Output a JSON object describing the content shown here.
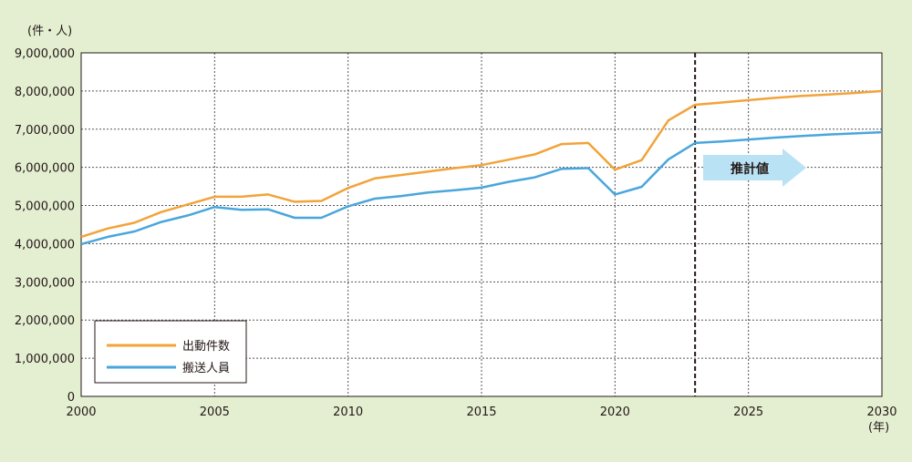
{
  "chart_data": {
    "type": "line",
    "y_unit_label": "(件・人)",
    "x_unit_label": "(年)",
    "xlim": [
      2000,
      2030
    ],
    "ylim": [
      0,
      9000000
    ],
    "x_ticks": [
      2000,
      2005,
      2010,
      2015,
      2020,
      2025,
      2030
    ],
    "x_tick_labels": [
      "2000",
      "2005",
      "2010",
      "2015",
      "2020",
      "2025",
      "2030"
    ],
    "y_ticks": [
      0,
      1000000,
      2000000,
      3000000,
      4000000,
      5000000,
      6000000,
      7000000,
      8000000,
      9000000
    ],
    "y_tick_labels": [
      "0",
      "1,000,000",
      "2,000,000",
      "3,000,000",
      "4,000,000",
      "5,000,000",
      "6,000,000",
      "7,000,000",
      "8,000,000",
      "9,000,000"
    ],
    "grid": true,
    "legend_position": "bottom-left",
    "projection_start_year": 2023,
    "projection_label": "推計値",
    "colors": {
      "series1": "#f2a33a",
      "series2": "#49a6dc",
      "arrow": "#b9e2f5"
    },
    "x": [
      2000,
      2001,
      2002,
      2003,
      2004,
      2005,
      2006,
      2007,
      2008,
      2009,
      2010,
      2011,
      2012,
      2013,
      2014,
      2015,
      2016,
      2017,
      2018,
      2019,
      2020,
      2021,
      2022,
      2023,
      2024,
      2025,
      2026,
      2027,
      2028,
      2029,
      2030
    ],
    "series": [
      {
        "name": "出動件数",
        "values": [
          4180000,
          4400000,
          4550000,
          4830000,
          5030000,
          5230000,
          5230000,
          5290000,
          5100000,
          5120000,
          5460000,
          5710000,
          5800000,
          5890000,
          5980000,
          6060000,
          6200000,
          6340000,
          6610000,
          6640000,
          5940000,
          6190000,
          7230000,
          7640000,
          7700000,
          7760000,
          7820000,
          7870000,
          7910000,
          7950000,
          8000000
        ]
      },
      {
        "name": "搬送人員",
        "values": [
          3990000,
          4180000,
          4320000,
          4570000,
          4740000,
          4960000,
          4890000,
          4900000,
          4680000,
          4680000,
          4980000,
          5180000,
          5250000,
          5340000,
          5400000,
          5470000,
          5620000,
          5740000,
          5960000,
          5980000,
          5290000,
          5490000,
          6210000,
          6640000,
          6680000,
          6730000,
          6780000,
          6820000,
          6860000,
          6890000,
          6920000
        ]
      }
    ]
  }
}
